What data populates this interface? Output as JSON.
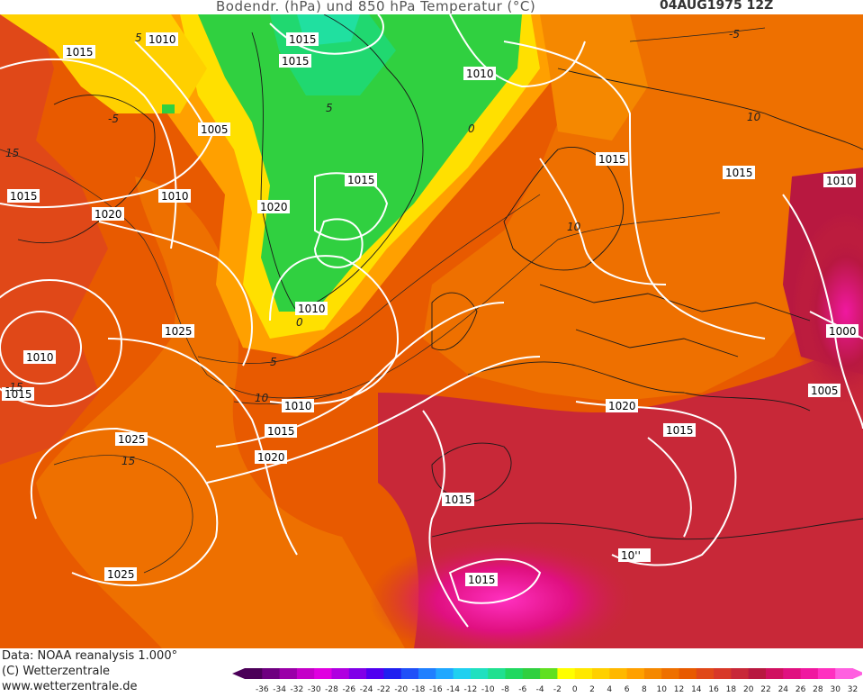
{
  "title": {
    "variable": "Bodendr. (hPa)  und 850 hPa Temperatur (°C)",
    "datetime": "04AUG1975  12Z"
  },
  "footer": {
    "data_source": "Data: NOAA reanalysis 1.000°",
    "copyright": "(C) Wetterzentrale",
    "url": "www.wetterzentrale.de"
  },
  "legend": {
    "values": [
      "-36",
      "-34",
      "-32",
      "-30",
      "-28",
      "-26",
      "-24",
      "-22",
      "-20",
      "-18",
      "-16",
      "-14",
      "-12",
      "-10",
      "-8",
      "-6",
      "-4",
      "-2",
      "0",
      "2",
      "4",
      "6",
      "8",
      "10",
      "12",
      "14",
      "16",
      "18",
      "20",
      "22",
      "24",
      "26",
      "28",
      "30",
      "32"
    ],
    "colors": [
      "#4b0058",
      "#6e0080",
      "#9a00a8",
      "#c400c8",
      "#e000e0",
      "#b000e0",
      "#8000e8",
      "#5000f0",
      "#2020f0",
      "#2050f8",
      "#2080ff",
      "#20a8ff",
      "#20d0f0",
      "#20e0c0",
      "#20e090",
      "#20d860",
      "#30d040",
      "#60e020",
      "#ffff00",
      "#ffe800",
      "#ffd000",
      "#ffb800",
      "#ffa000",
      "#f58800",
      "#ee7000",
      "#e85a00",
      "#e04818",
      "#d83828",
      "#c82838",
      "#b81840",
      "#d01060",
      "#e01080",
      "#f018a0",
      "#ff30c0",
      "#ff60e0"
    ]
  },
  "pressure_labels": [
    {
      "text": "1015",
      "id": "p1"
    },
    {
      "text": "1010",
      "id": "p2"
    },
    {
      "text": "1015",
      "id": "p3"
    },
    {
      "text": "1015",
      "id": "p4"
    },
    {
      "text": "1010",
      "id": "p5"
    },
    {
      "text": "1005",
      "id": "p6"
    },
    {
      "text": "1015",
      "id": "p7"
    },
    {
      "text": "1010",
      "id": "p8"
    },
    {
      "text": "1020",
      "id": "p9"
    },
    {
      "text": "1020",
      "id": "p10"
    },
    {
      "text": "1015",
      "id": "p11"
    },
    {
      "text": "1015",
      "id": "p12"
    },
    {
      "text": "1015",
      "id": "p13"
    },
    {
      "text": "1010",
      "id": "p14"
    },
    {
      "text": "1010",
      "id": "p15"
    },
    {
      "text": "1025",
      "id": "p16"
    },
    {
      "text": "1010",
      "id": "p17"
    },
    {
      "text": "1015",
      "id": "p18"
    },
    {
      "text": "1010",
      "id": "p19"
    },
    {
      "text": "1015",
      "id": "p20"
    },
    {
      "text": "1025",
      "id": "p21"
    },
    {
      "text": "1020",
      "id": "p22"
    },
    {
      "text": "1000",
      "id": "p23"
    },
    {
      "text": "1005",
      "id": "p24"
    },
    {
      "text": "1020",
      "id": "p25"
    },
    {
      "text": "1015",
      "id": "p26"
    },
    {
      "text": "1015",
      "id": "p27"
    },
    {
      "text": "1025",
      "id": "p28"
    },
    {
      "text": "10''",
      "id": "p29"
    },
    {
      "text": "1015",
      "id": "p30"
    }
  ],
  "temperature_labels": [
    "5",
    "15",
    "0",
    "-5",
    "5",
    "0",
    "10",
    "5",
    "10",
    "15",
    "-15",
    "10",
    "-5"
  ]
}
